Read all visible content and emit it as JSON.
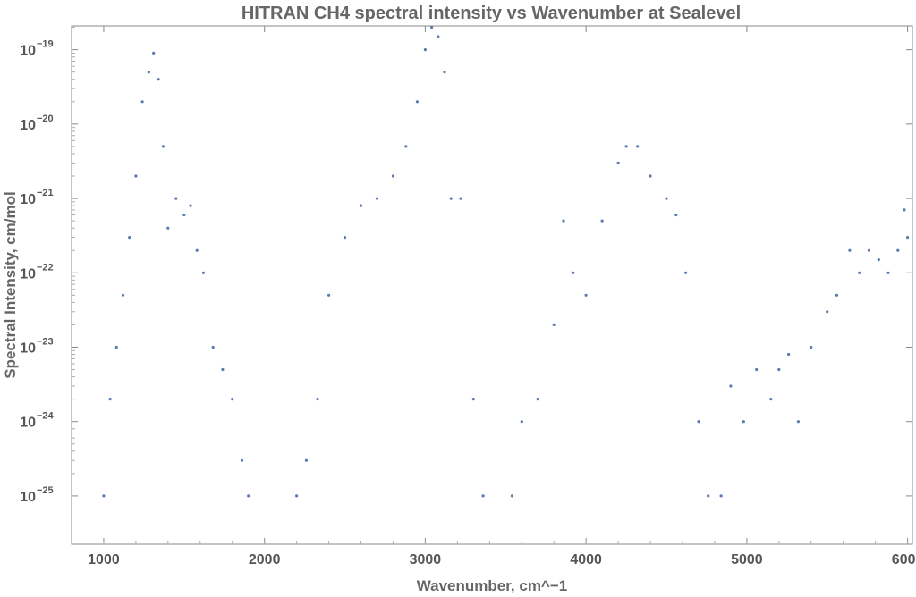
{
  "chart_data": {
    "type": "scatter",
    "title": "HITRAN CH4 spectral intensity vs Wavenumber at Sealevel",
    "xlabel": "Wavenumber, cm^−1",
    "ylabel": "Spectral Intensity, cm/mol",
    "xlim": [
      800,
      6030
    ],
    "ylim_log10": [
      -25.65,
      -18.68
    ],
    "y_scale": "log",
    "x_ticks": [
      "1000",
      "2000",
      "3000",
      "4000",
      "5000",
      "6000"
    ],
    "y_ticks": [
      {
        "base": "10",
        "exp": "−19"
      },
      {
        "base": "10",
        "exp": "−20"
      },
      {
        "base": "10",
        "exp": "−21"
      },
      {
        "base": "10",
        "exp": "−22"
      },
      {
        "base": "10",
        "exp": "−23"
      },
      {
        "base": "10",
        "exp": "−24"
      },
      {
        "base": "10",
        "exp": "−25"
      }
    ],
    "grid": false,
    "marker_color": "#5b7bb0",
    "series": [
      {
        "points": [
          [
            1000,
            1e-25
          ],
          [
            1040,
            2e-24
          ],
          [
            1080,
            1e-23
          ],
          [
            1120,
            5e-23
          ],
          [
            1160,
            3e-22
          ],
          [
            1200,
            2e-21
          ],
          [
            1240,
            2e-20
          ],
          [
            1280,
            5e-20
          ],
          [
            1310,
            9e-20
          ],
          [
            1340,
            4e-20
          ],
          [
            1370,
            5e-21
          ],
          [
            1400,
            4e-22
          ],
          [
            1450,
            1e-21
          ],
          [
            1500,
            6e-22
          ],
          [
            1540,
            8e-22
          ],
          [
            1580,
            2e-22
          ],
          [
            1620,
            1e-22
          ],
          [
            1680,
            1e-23
          ],
          [
            1740,
            5e-24
          ],
          [
            1800,
            2e-24
          ],
          [
            1860,
            3e-25
          ],
          [
            1900,
            1e-25
          ],
          [
            2200,
            1e-25
          ],
          [
            2260,
            3e-25
          ],
          [
            2330,
            2e-24
          ],
          [
            2400,
            5e-23
          ],
          [
            2500,
            3e-22
          ],
          [
            2600,
            8e-22
          ],
          [
            2700,
            1e-21
          ],
          [
            2800,
            2e-21
          ],
          [
            2880,
            5e-21
          ],
          [
            2950,
            2e-20
          ],
          [
            3000,
            1e-19
          ],
          [
            3040,
            2e-19
          ],
          [
            3080,
            1.5e-19
          ],
          [
            3120,
            5e-20
          ],
          [
            3160,
            1e-21
          ],
          [
            3220,
            1e-21
          ],
          [
            3300,
            2e-24
          ],
          [
            3360,
            1e-25
          ],
          [
            3540,
            1e-25
          ],
          [
            3600,
            1e-24
          ],
          [
            3700,
            2e-24
          ],
          [
            3800,
            2e-23
          ],
          [
            3860,
            5e-22
          ],
          [
            3920,
            1e-22
          ],
          [
            4000,
            5e-23
          ],
          [
            4100,
            5e-22
          ],
          [
            4200,
            3e-21
          ],
          [
            4250,
            5e-21
          ],
          [
            4320,
            5e-21
          ],
          [
            4400,
            2e-21
          ],
          [
            4500,
            1e-21
          ],
          [
            4560,
            6e-22
          ],
          [
            4620,
            1e-22
          ],
          [
            4700,
            1e-24
          ],
          [
            4760,
            1e-25
          ],
          [
            4840,
            1e-25
          ],
          [
            4900,
            3e-24
          ],
          [
            4980,
            1e-24
          ],
          [
            5060,
            5e-24
          ],
          [
            5150,
            2e-24
          ],
          [
            5200,
            5e-24
          ],
          [
            5260,
            8e-24
          ],
          [
            5320,
            1e-24
          ],
          [
            5400,
            1e-23
          ],
          [
            5500,
            3e-23
          ],
          [
            5560,
            5e-23
          ],
          [
            5640,
            2e-22
          ],
          [
            5700,
            1e-22
          ],
          [
            5760,
            2e-22
          ],
          [
            5820,
            1.5e-22
          ],
          [
            5880,
            1e-22
          ],
          [
            5940,
            2e-22
          ],
          [
            5980,
            7e-22
          ],
          [
            6000,
            3e-22
          ]
        ]
      }
    ]
  }
}
